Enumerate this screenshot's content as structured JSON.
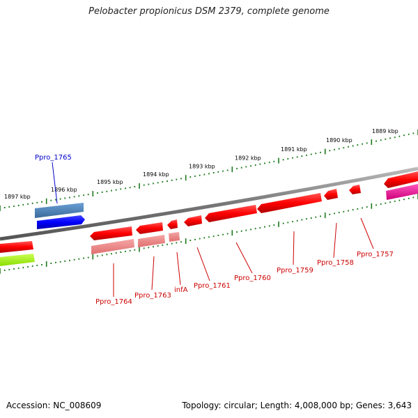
{
  "header": {
    "title": "Pelobacter propionicus DSM 2379, complete genome"
  },
  "footer": {
    "accession": "Accession: NC_008609",
    "summary": "Topology: circular; Length: 4,008,000 bp; Genes: 3,643"
  },
  "scale_ticks": [
    "1897 kbp",
    "1896 kbp",
    "1895 kbp",
    "1894 kbp",
    "1893 kbp",
    "1892 kbp",
    "1891 kbp",
    "1890 kbp",
    "1889 kbp"
  ],
  "genes": [
    {
      "label": "Ppro_1765",
      "color": "#0000cc"
    },
    {
      "label": "Ppro_1764",
      "color": "#cc0000"
    },
    {
      "label": "Ppro_1763",
      "color": "#cc0000"
    },
    {
      "label": "infA",
      "color": "#cc0000"
    },
    {
      "label": "Ppro_1761",
      "color": "#cc0000"
    },
    {
      "label": "Ppro_1760",
      "color": "#cc0000"
    },
    {
      "label": "Ppro_1759",
      "color": "#cc0000"
    },
    {
      "label": "Ppro_1758",
      "color": "#cc0000"
    },
    {
      "label": "Ppro_1757",
      "color": "#cc0000"
    }
  ],
  "colors": {
    "backbone": "#8a8a8a",
    "tick": "#1a7a1a",
    "gene_forward": "#ff0000",
    "gene_forward_light": "#f08a8a",
    "gene_reverse": "#0000ff",
    "gene_reverse_alt": "#4a7fb5",
    "rna": "#ff1aa0",
    "other": "#aaff22"
  }
}
